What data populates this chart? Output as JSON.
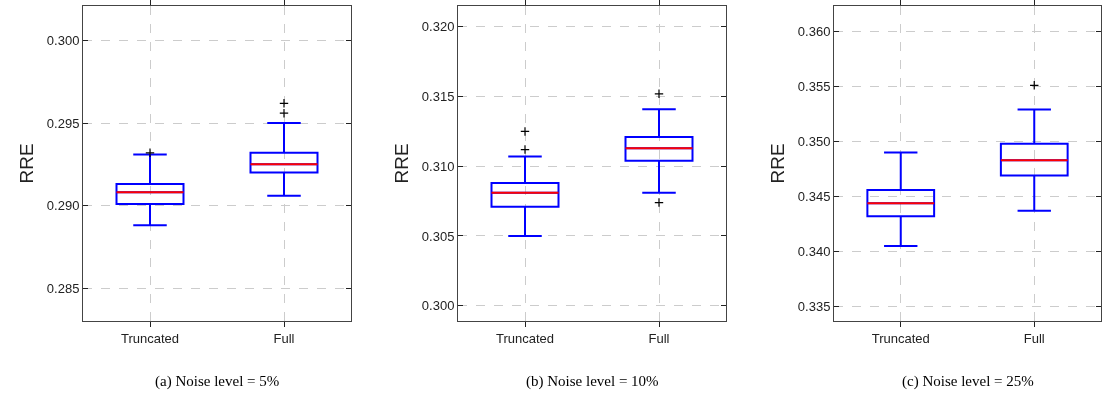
{
  "chart_data": [
    {
      "type": "box",
      "categories": [
        "Truncated",
        "Full"
      ],
      "ylabel": "RRE",
      "ylim": [
        0.283,
        0.3021
      ],
      "yticks": [
        {
          "value": 0.285,
          "label": "0.285"
        },
        {
          "value": 0.29,
          "label": "0.290"
        },
        {
          "value": 0.295,
          "label": "0.295"
        },
        {
          "value": 0.3,
          "label": "0.300"
        }
      ],
      "grid": true,
      "marker": "cross",
      "annotations": [
        "(a) Noise level = 5%"
      ],
      "series": [
        {
          "color": "#0000ff",
          "boxes": [
            {
              "low": 0.2888,
              "q1": 0.2901,
              "median": 0.2908,
              "q3": 0.2913,
              "high": 0.2931,
              "outliers": [
                0.2932
              ]
            },
            {
              "low": 0.2906,
              "q1": 0.292,
              "median": 0.2925,
              "q3": 0.2932,
              "high": 0.295,
              "outliers": [
                0.2956,
                0.2962
              ]
            }
          ]
        }
      ]
    },
    {
      "type": "box",
      "categories": [
        "Truncated",
        "Full"
      ],
      "ylabel": "RRE",
      "ylim": [
        0.2989,
        0.3215
      ],
      "yticks": [
        {
          "value": 0.3,
          "label": "0.300"
        },
        {
          "value": 0.305,
          "label": "0.305"
        },
        {
          "value": 0.31,
          "label": "0.310"
        },
        {
          "value": 0.315,
          "label": "0.315"
        },
        {
          "value": 0.32,
          "label": "0.320"
        }
      ],
      "grid": true,
      "marker": "cross",
      "annotations": [
        "(b) Noise level = 10%"
      ],
      "series": [
        {
          "color": "#0000ff",
          "boxes": [
            {
              "low": 0.305,
              "q1": 0.3071,
              "median": 0.3081,
              "q3": 0.3088,
              "high": 0.3107,
              "outliers": [
                0.3112,
                0.3125
              ]
            },
            {
              "low": 0.3081,
              "q1": 0.3104,
              "median": 0.3113,
              "q3": 0.3121,
              "high": 0.3141,
              "outliers": [
                0.3074,
                0.3152
              ]
            }
          ]
        }
      ]
    },
    {
      "type": "box",
      "categories": [
        "Truncated",
        "Full"
      ],
      "ylabel": "RRE",
      "ylim": [
        0.3337,
        0.3623
      ],
      "yticks": [
        {
          "value": 0.335,
          "label": "0.335"
        },
        {
          "value": 0.34,
          "label": "0.340"
        },
        {
          "value": 0.345,
          "label": "0.345"
        },
        {
          "value": 0.35,
          "label": "0.350"
        },
        {
          "value": 0.355,
          "label": "0.355"
        },
        {
          "value": 0.36,
          "label": "0.360"
        }
      ],
      "grid": true,
      "marker": "cross",
      "annotations": [
        "(c) Noise level = 25%"
      ],
      "series": [
        {
          "color": "#0000ff",
          "boxes": [
            {
              "low": 0.3405,
              "q1": 0.3432,
              "median": 0.3444,
              "q3": 0.3456,
              "high": 0.349
            },
            {
              "low": 0.3437,
              "q1": 0.3469,
              "median": 0.3483,
              "q3": 0.3498,
              "high": 0.3529,
              "outliers": [
                0.3551
              ]
            }
          ]
        }
      ]
    }
  ]
}
